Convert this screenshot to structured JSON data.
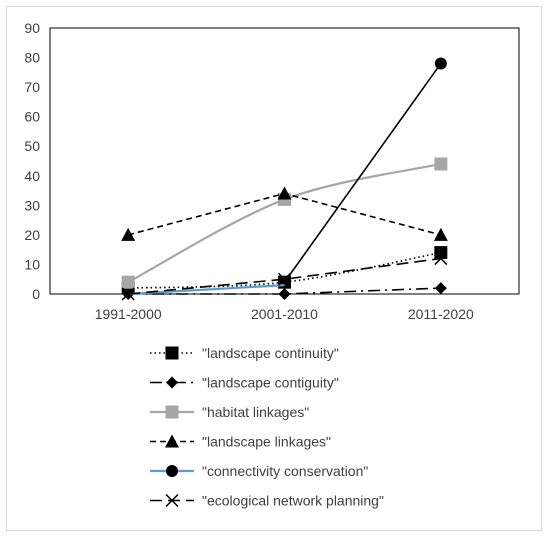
{
  "chart_data": {
    "type": "line",
    "categories": [
      "1991-2000",
      "2001-2010",
      "2011-2020"
    ],
    "ylim": [
      0,
      90
    ],
    "yticks": [
      0,
      10,
      20,
      30,
      40,
      50,
      60,
      70,
      80,
      90
    ],
    "grid": false,
    "legend_position": "bottom",
    "series": [
      {
        "name": "\"landscape continuity\"",
        "values": [
          2,
          4,
          14
        ],
        "color": "#000000",
        "dash": "dotted",
        "marker": "square",
        "smooth": true
      },
      {
        "name": "\"landscape contiguity\"",
        "values": [
          0,
          0,
          2
        ],
        "color": "#000000",
        "dash": "dashdot",
        "marker": "diamond",
        "smooth": false
      },
      {
        "name": "\"habitat linkages\"",
        "values": [
          4,
          32,
          44
        ],
        "color": "#a6a6a6",
        "dash": "solid",
        "marker": "square",
        "smooth": true
      },
      {
        "name": "\"landscape linkages\"",
        "values": [
          20,
          34,
          20
        ],
        "color": "#000000",
        "dash": "dashed",
        "marker": "triangle",
        "smooth": false
      },
      {
        "name": "\"connectivity conservation\"",
        "values": [
          null,
          4,
          78
        ],
        "color": "#000000",
        "dash": "solid",
        "marker": "circle",
        "smooth": false
      },
      {
        "name": "\"connectivity conservation\" (blue segment)",
        "values": [
          0,
          3,
          null
        ],
        "color": "#5b9bd5",
        "dash": "solid",
        "marker": "none",
        "smooth": false,
        "legend": false
      },
      {
        "name": "\"ecological network planning\"",
        "values": [
          0,
          5,
          12
        ],
        "color": "#000000",
        "dash": "longdash",
        "marker": "x",
        "smooth": false
      }
    ]
  }
}
